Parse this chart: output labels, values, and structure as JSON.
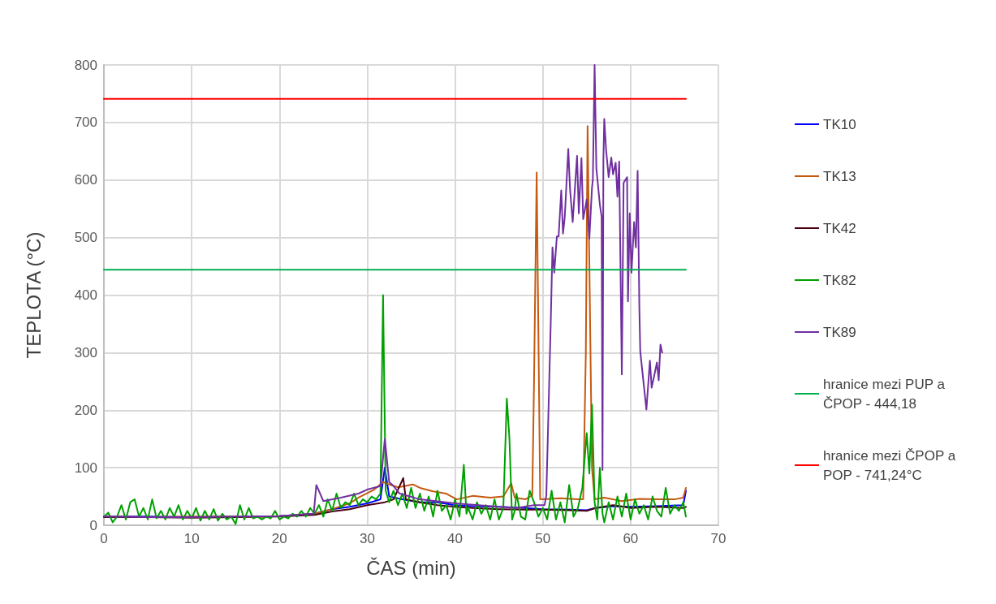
{
  "chart_data": {
    "type": "line",
    "xlabel": "ČAS (min)",
    "ylabel": "TEPLOTA (°C)",
    "xlim": [
      0,
      70
    ],
    "xticks": [
      0,
      10,
      20,
      30,
      40,
      50,
      60,
      70
    ],
    "ylim": [
      0,
      800
    ],
    "yticks": [
      0,
      100,
      200,
      300,
      400,
      500,
      600,
      700,
      800
    ],
    "grid": true,
    "legend": "right",
    "marker": "none",
    "line_style": "solid",
    "series": [
      {
        "name": "TK10",
        "color": "#0000ff",
        "x": [
          0,
          5,
          10,
          15,
          20,
          24,
          26,
          28,
          30,
          31.5,
          32,
          32.5,
          34,
          36,
          38,
          40,
          42,
          45,
          48,
          50,
          53,
          55,
          56,
          58,
          60,
          63,
          66,
          66.3
        ],
        "values": [
          15,
          15,
          14,
          15,
          16,
          20,
          28,
          32,
          38,
          45,
          100,
          50,
          45,
          40,
          40,
          35,
          33,
          32,
          30,
          28,
          27,
          26,
          30,
          33,
          32,
          33,
          35,
          60
        ]
      },
      {
        "name": "TK13",
        "color": "#c55a11",
        "x": [
          0,
          5,
          10,
          15,
          20,
          24,
          26,
          28,
          29,
          30.8,
          31.8,
          32.5,
          33.5,
          35.2,
          36,
          37.5,
          39,
          40.2,
          42,
          44,
          45.5,
          46.4,
          46.8,
          48,
          48.8,
          49.0,
          49.3,
          49.7,
          50,
          52,
          54,
          54.6,
          54.9,
          55.1,
          55.6,
          55.9,
          57,
          59,
          61,
          63,
          65,
          66,
          66.3
        ],
        "values": [
          15,
          14,
          15,
          15,
          16,
          20,
          28,
          38,
          48,
          62,
          75,
          71,
          66,
          71,
          65,
          59,
          55,
          45,
          51,
          48,
          50,
          73,
          48,
          45,
          52,
          250,
          613,
          45,
          45,
          47,
          45,
          45,
          300,
          694,
          100,
          45,
          48,
          42,
          46,
          45,
          45,
          48,
          65
        ]
      },
      {
        "name": "TK42",
        "color": "#4b0012",
        "x": [
          0,
          5,
          10,
          15,
          20,
          24,
          26,
          28,
          30,
          32,
          33,
          34.1,
          34.4,
          36,
          38,
          40,
          42,
          45,
          48,
          50,
          53,
          55,
          56,
          58,
          60,
          63,
          66,
          66.3
        ],
        "values": [
          14,
          14,
          13,
          14,
          15,
          18,
          24,
          28,
          35,
          40,
          45,
          82,
          45,
          40,
          35,
          32,
          30,
          28,
          27,
          27,
          26,
          25,
          30,
          35,
          30,
          32,
          30,
          32
        ]
      },
      {
        "name": "TK82",
        "color": "#00a000",
        "x": [
          0,
          0.5,
          1,
          1.5,
          2,
          2.5,
          3,
          3.5,
          4,
          4.5,
          5,
          5.5,
          6,
          6.5,
          7,
          7.5,
          8,
          8.5,
          9,
          9.5,
          10,
          10.5,
          11,
          11.5,
          12,
          12.5,
          13,
          13.5,
          14,
          14.5,
          15,
          15.5,
          16,
          16.5,
          17,
          17.5,
          18,
          18.5,
          19,
          19.5,
          20,
          20.5,
          21,
          21.5,
          22,
          22.5,
          23,
          23.5,
          24,
          24.5,
          25,
          25.5,
          26,
          26.5,
          27,
          27.5,
          28,
          28.5,
          29,
          29.5,
          30,
          30.5,
          31,
          31.5,
          31.8,
          32.1,
          32.5,
          33,
          33.5,
          34,
          34.5,
          35,
          35.5,
          36,
          36.5,
          37,
          37.5,
          38,
          38.5,
          39,
          39.5,
          40,
          40.5,
          41,
          41.3,
          41.5,
          42,
          42.5,
          43,
          43.5,
          44,
          44.5,
          45,
          45.5,
          45.9,
          46.2,
          46.5,
          46.8,
          47,
          47.5,
          48,
          48.5,
          49,
          49.5,
          50,
          50.5,
          51,
          51.5,
          52,
          52.5,
          53,
          53.5,
          54,
          54.5,
          55,
          55.3,
          55.6,
          55.9,
          56.2,
          56.5,
          56.8,
          57,
          57.5,
          58,
          58.5,
          59,
          59.5,
          60,
          60.5,
          61,
          61.5,
          62,
          62.5,
          63,
          63.5,
          64,
          64.5,
          65,
          65.5,
          66,
          66.3
        ],
        "values": [
          15,
          22,
          5,
          15,
          35,
          10,
          40,
          45,
          15,
          30,
          10,
          45,
          12,
          25,
          10,
          30,
          15,
          35,
          10,
          25,
          12,
          30,
          8,
          25,
          10,
          28,
          8,
          20,
          10,
          15,
          2,
          35,
          10,
          30,
          12,
          15,
          10,
          15,
          12,
          25,
          10,
          15,
          12,
          20,
          15,
          25,
          15,
          30,
          20,
          35,
          15,
          45,
          25,
          55,
          30,
          40,
          35,
          55,
          35,
          45,
          40,
          50,
          45,
          55,
          400,
          60,
          40,
          60,
          35,
          55,
          30,
          65,
          30,
          55,
          25,
          50,
          15,
          60,
          25,
          35,
          10,
          45,
          15,
          105,
          20,
          30,
          10,
          40,
          20,
          35,
          10,
          45,
          10,
          30,
          220,
          150,
          10,
          25,
          55,
          15,
          10,
          60,
          40,
          15,
          30,
          10,
          60,
          10,
          40,
          5,
          70,
          15,
          30,
          65,
          160,
          90,
          210,
          40,
          10,
          100,
          20,
          5,
          40,
          10,
          50,
          15,
          55,
          10,
          45,
          20,
          35,
          10,
          50,
          25,
          15,
          65,
          20,
          35,
          25,
          40,
          15
        ]
      },
      {
        "name": "TK89",
        "color": "#7030a0",
        "x": [
          0,
          5,
          10,
          15,
          20,
          23.9,
          24.2,
          25,
          27,
          29,
          30,
          31.5,
          32,
          32.5,
          33,
          33.7,
          36,
          40,
          45,
          47,
          49,
          50.2,
          50.4,
          50.9,
          51.1,
          51.3,
          51.6,
          51.8,
          52.1,
          52.3,
          52.5,
          52.9,
          53.1,
          53.4,
          53.9,
          54.1,
          54.4,
          54.6,
          55.0,
          55.3,
          55.6,
          55.7,
          55.9,
          56.1,
          56.5,
          56.7,
          56.8,
          56.9,
          57.0,
          57.2,
          57.5,
          57.8,
          58.0,
          58.3,
          58.5,
          58.7,
          59.0,
          59.2,
          59.6,
          59.7,
          59.9,
          60.1,
          60.4,
          60.6,
          60.8,
          61.0,
          61.1,
          61.8,
          62.2,
          62.4,
          62.8,
          63.0,
          63.2,
          63.4,
          63.6
        ],
        "values": [
          15,
          14,
          14,
          15,
          16,
          20,
          70,
          42,
          48,
          55,
          62,
          68,
          150,
          75,
          68,
          55,
          45,
          38,
          32,
          30,
          35,
          35,
          52,
          351,
          483,
          439,
          502,
          502,
          582,
          507,
          536,
          654,
          585,
          527,
          642,
          542,
          638,
          532,
          566,
          498,
          586,
          601,
          800,
          620,
          557,
          536,
          96,
          635,
          706,
          654,
          605,
          639,
          610,
          630,
          571,
          632,
          262,
          595,
          605,
          389,
          542,
          439,
          527,
          483,
          616,
          376,
          302,
          201,
          286,
          239,
          268,
          283,
          252,
          314,
          300
        ]
      },
      {
        "name": "hranice mezi PUP a ČPOP - 444,18",
        "color": "#00b050",
        "x": [
          0,
          66.3
        ],
        "values": [
          444.18,
          444.18
        ]
      },
      {
        "name": "hranice mezi ČPOP a POP - 741,24°C",
        "color": "#ff0000",
        "x": [
          0,
          66.3
        ],
        "values": [
          741.24,
          741.24
        ]
      }
    ]
  }
}
